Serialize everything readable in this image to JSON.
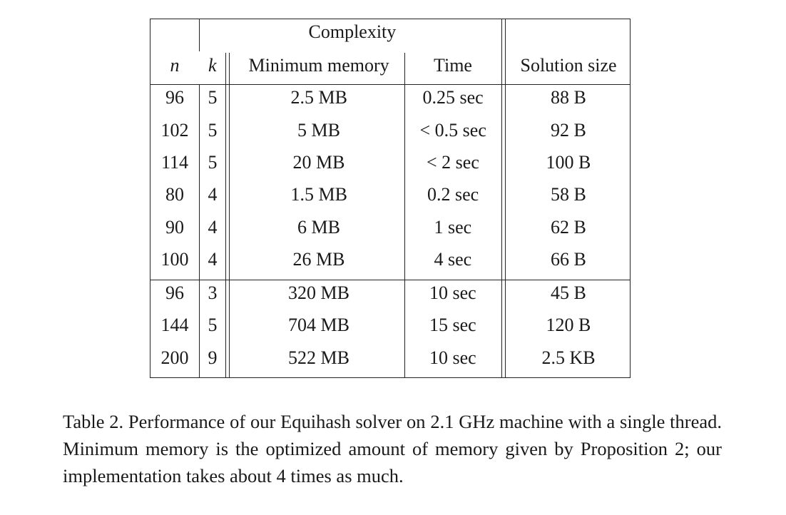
{
  "table": {
    "group_header": "Complexity",
    "headers": [
      "n",
      "k",
      "Minimum memory",
      "Time",
      "Solution size"
    ],
    "rows": [
      [
        "96",
        "5",
        "2.5 MB",
        "0.25 sec",
        "88 B"
      ],
      [
        "102",
        "5",
        "5 MB",
        "< 0.5 sec",
        "92 B"
      ],
      [
        "114",
        "5",
        "20 MB",
        "< 2 sec",
        "100 B"
      ],
      [
        "80",
        "4",
        "1.5 MB",
        "0.2 sec",
        "58 B"
      ],
      [
        "90",
        "4",
        "6 MB",
        "1 sec",
        "62 B"
      ],
      [
        "100",
        "4",
        "26 MB",
        "4 sec",
        "66 B"
      ],
      [
        "96",
        "3",
        "320 MB",
        "10 sec",
        "45 B"
      ],
      [
        "144",
        "5",
        "704 MB",
        "15 sec",
        "120 B"
      ],
      [
        "200",
        "9",
        "522 MB",
        "10 sec",
        "2.5 KB"
      ]
    ]
  },
  "caption": "Table 2. Performance of our Equihash solver on 2.1 GHz machine with a single thread. Minimum memory is the optimized amount of memory given by Proposition 2; our implementation takes about 4 times as much."
}
